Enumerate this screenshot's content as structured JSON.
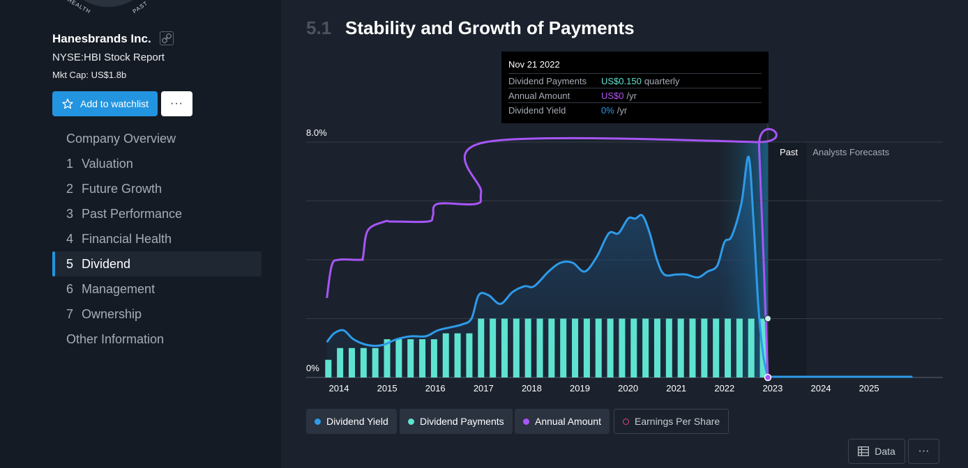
{
  "sidebar": {
    "snowflake_labels": [
      "HEALTH",
      "PAST"
    ],
    "company_name": "Hanesbrands Inc.",
    "report": "NYSE:HBI Stock Report",
    "mkt_cap": "Mkt Cap: US$1.8b",
    "watchlist_label": "Add to watchlist",
    "more_label": "···",
    "nav": [
      {
        "num": "",
        "label": "Company Overview"
      },
      {
        "num": "1",
        "label": "Valuation"
      },
      {
        "num": "2",
        "label": "Future Growth"
      },
      {
        "num": "3",
        "label": "Past Performance"
      },
      {
        "num": "4",
        "label": "Financial Health"
      },
      {
        "num": "5",
        "label": "Dividend",
        "active": true
      },
      {
        "num": "6",
        "label": "Management"
      },
      {
        "num": "7",
        "label": "Ownership"
      },
      {
        "num": "",
        "label": "Other Information"
      }
    ]
  },
  "section": {
    "number": "5.1",
    "title": "Stability and Growth of Payments"
  },
  "tooltip": {
    "date": "Nov 21 2022",
    "rows": [
      {
        "label": "Dividend Payments",
        "value": "US$0.150",
        "unit": "quarterly",
        "color": "#5fe3d1"
      },
      {
        "label": "Annual Amount",
        "value": "US$0",
        "unit": "/yr",
        "color": "#b057f2"
      },
      {
        "label": "Dividend Yield",
        "value": "0%",
        "unit": "/yr",
        "color": "#2e9bea"
      }
    ]
  },
  "chart_data": {
    "type": "line",
    "y_tick_labels": [
      "8.0%",
      "0%"
    ],
    "ylim": [
      0,
      8
    ],
    "x_ticks": [
      "2014",
      "2015",
      "2016",
      "2017",
      "2018",
      "2019",
      "2020",
      "2021",
      "2022",
      "2023",
      "2024",
      "2025"
    ],
    "zone_labels": {
      "past": "Past",
      "forecast": "Analysts Forecasts"
    },
    "colors": {
      "yield": "#2e9bea",
      "payments": "#5fe3d1",
      "annual": "#a855f7"
    },
    "series": [
      {
        "name": "Dividend Yield",
        "x": [
          2013.75,
          2013.9,
          2014.1,
          2014.3,
          2014.6,
          2014.9,
          2015.2,
          2015.5,
          2015.8,
          2016.05,
          2016.3,
          2016.55,
          2016.75,
          2016.9,
          2017.1,
          2017.35,
          2017.6,
          2017.85,
          2018.05,
          2018.35,
          2018.6,
          2018.85,
          2019.1,
          2019.35,
          2019.6,
          2019.8,
          2020.0,
          2020.15,
          2020.3,
          2020.45,
          2020.6,
          2020.75,
          2021.0,
          2021.2,
          2021.45,
          2021.65,
          2021.85,
          2022.0,
          2022.15,
          2022.35,
          2022.5,
          2022.6,
          2022.7,
          2022.8,
          2022.9
        ],
        "values": [
          1.2,
          1.5,
          1.6,
          1.3,
          1.1,
          1.1,
          1.3,
          1.4,
          1.4,
          1.6,
          1.7,
          1.8,
          2.0,
          2.8,
          2.8,
          2.5,
          2.9,
          3.1,
          3.1,
          3.6,
          3.9,
          3.9,
          3.6,
          4.1,
          4.9,
          4.9,
          5.4,
          5.4,
          5.5,
          4.9,
          4.0,
          3.5,
          3.5,
          3.5,
          3.4,
          3.6,
          3.8,
          4.6,
          4.8,
          5.9,
          7.5,
          5.4,
          2.5,
          0.8,
          0.0
        ]
      },
      {
        "name": "Dividend Payments",
        "values": [
          0.6,
          1.0,
          1.0,
          1.0,
          1.0,
          1.3,
          1.3,
          1.3,
          1.3,
          1.3,
          1.5,
          1.5,
          1.5,
          2.0,
          2.0,
          2.0,
          2.0,
          2.0,
          2.0,
          2.0,
          2.0,
          2.0,
          2.0,
          2.0,
          2.0,
          2.0,
          2.0,
          2.0,
          2.0,
          2.0,
          2.0,
          2.0,
          2.0,
          2.0,
          2.0,
          2.0,
          2.0,
          2.0
        ]
      },
      {
        "name": "Annual Amount",
        "x": [
          2013.75,
          2013.85,
          2014.0,
          2014.45,
          2014.5,
          2014.6,
          2014.95,
          2015.05,
          2015.15,
          2015.85,
          2015.95,
          2016.05,
          2016.85,
          2016.95,
          2017.05,
          2022.65,
          2022.72,
          2022.9
        ],
        "values": [
          2.7,
          3.8,
          4.0,
          4.0,
          4.1,
          5.0,
          5.3,
          5.3,
          5.3,
          5.3,
          5.5,
          5.9,
          5.9,
          6.3,
          8.0,
          8.0,
          7.8,
          0.0
        ]
      },
      {
        "name": "Earnings Per Share",
        "values": []
      }
    ],
    "forecast_yield_x": [
      2022.9,
      2025.9
    ],
    "forecast_yield_values": [
      0,
      0
    ]
  },
  "legend": [
    "Dividend Yield",
    "Dividend Payments",
    "Annual Amount",
    "Earnings Per Share"
  ],
  "buttons": {
    "data_label": "Data",
    "more_label": "···"
  }
}
